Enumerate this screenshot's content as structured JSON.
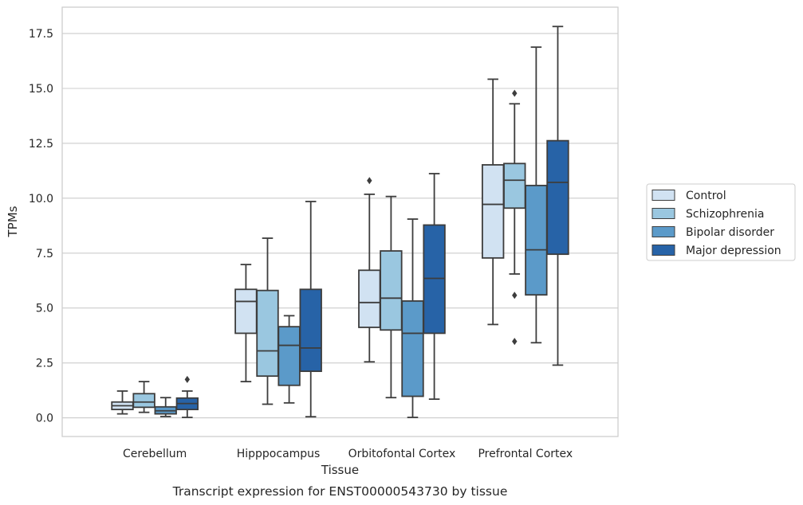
{
  "chart_data": {
    "type": "boxplot",
    "caption": "Transcript expression for ENST00000543730 by tissue",
    "xlabel": "Tissue",
    "ylabel": "TPMs",
    "ylim": [
      -0.85,
      18.7
    ],
    "yticks": [
      0.0,
      2.5,
      5.0,
      7.5,
      10.0,
      12.5,
      15.0,
      17.5
    ],
    "ytick_labels": [
      "0.0",
      "2.5",
      "5.0",
      "7.5",
      "10.0",
      "12.5",
      "15.0",
      "17.5"
    ],
    "grid": "horizontal",
    "legend_position": "right",
    "categories": [
      "Cerebellum",
      "Hipppocampus",
      "Orbitofontal Cortex",
      "Prefrontal Cortex"
    ],
    "series": [
      {
        "name": "Control",
        "color": "#d1e2f2",
        "boxes": [
          {
            "whislo": 0.18,
            "q1": 0.38,
            "med": 0.55,
            "q3": 0.72,
            "whishi": 1.22,
            "fliers": []
          },
          {
            "whislo": 1.65,
            "q1": 3.85,
            "med": 5.3,
            "q3": 5.85,
            "whishi": 6.98,
            "fliers": []
          },
          {
            "whislo": 2.55,
            "q1": 4.12,
            "med": 5.25,
            "q3": 6.72,
            "whishi": 10.18,
            "fliers": [
              10.8
            ]
          },
          {
            "whislo": 4.25,
            "q1": 7.28,
            "med": 9.72,
            "q3": 11.52,
            "whishi": 15.42,
            "fliers": []
          }
        ]
      },
      {
        "name": "Schizophrenia",
        "color": "#9ac7e0",
        "boxes": [
          {
            "whislo": 0.25,
            "q1": 0.48,
            "med": 0.72,
            "q3": 1.1,
            "whishi": 1.65,
            "fliers": []
          },
          {
            "whislo": 0.62,
            "q1": 1.9,
            "med": 3.05,
            "q3": 5.8,
            "whishi": 8.18,
            "fliers": []
          },
          {
            "whislo": 0.92,
            "q1": 4.0,
            "med": 5.45,
            "q3": 7.6,
            "whishi": 10.08,
            "fliers": []
          },
          {
            "whislo": 6.55,
            "q1": 9.55,
            "med": 10.82,
            "q3": 11.58,
            "whishi": 14.3,
            "fliers": [
              14.78,
              5.58,
              3.48
            ]
          }
        ]
      },
      {
        "name": "Bipolar disorder",
        "color": "#5b9ac9",
        "boxes": [
          {
            "whislo": 0.06,
            "q1": 0.18,
            "med": 0.32,
            "q3": 0.5,
            "whishi": 0.92,
            "fliers": []
          },
          {
            "whislo": 0.68,
            "q1": 1.48,
            "med": 3.3,
            "q3": 4.15,
            "whishi": 4.65,
            "fliers": []
          },
          {
            "whislo": 0.02,
            "q1": 0.98,
            "med": 3.85,
            "q3": 5.32,
            "whishi": 9.05,
            "fliers": []
          },
          {
            "whislo": 3.42,
            "q1": 5.6,
            "med": 7.65,
            "q3": 10.58,
            "whishi": 16.88,
            "fliers": []
          }
        ]
      },
      {
        "name": "Major depression",
        "color": "#2763a7",
        "boxes": [
          {
            "whislo": 0.02,
            "q1": 0.38,
            "med": 0.65,
            "q3": 0.9,
            "whishi": 1.22,
            "fliers": [
              1.75
            ]
          },
          {
            "whislo": 0.05,
            "q1": 2.12,
            "med": 3.18,
            "q3": 5.85,
            "whishi": 9.85,
            "fliers": []
          },
          {
            "whislo": 0.85,
            "q1": 3.85,
            "med": 6.35,
            "q3": 8.78,
            "whishi": 11.12,
            "fliers": []
          },
          {
            "whislo": 2.4,
            "q1": 7.45,
            "med": 10.72,
            "q3": 12.62,
            "whishi": 17.82,
            "fliers": []
          }
        ]
      }
    ]
  }
}
